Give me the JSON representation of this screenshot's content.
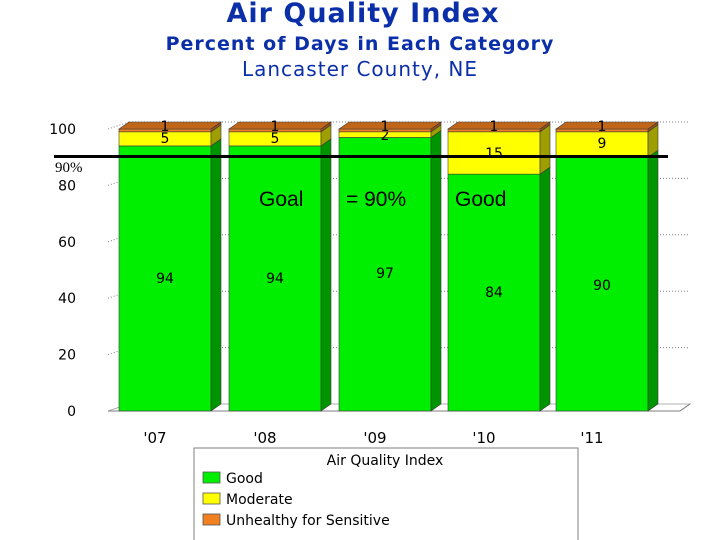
{
  "title": "Air Quality Index",
  "subtitle": "Percent of Days in Each Category",
  "location": "Lancaster County, NE",
  "goal": {
    "label": "90%",
    "value": 90,
    "note_parts": [
      "Goal",
      "= 90%",
      "Good"
    ]
  },
  "chart_data": {
    "type": "bar",
    "stacked": true,
    "categories": [
      "'07",
      "'08",
      "'09",
      "'10",
      "'11"
    ],
    "series": [
      {
        "name": "Good",
        "values": [
          94,
          94,
          97,
          84,
          90
        ],
        "color": "#00ee00"
      },
      {
        "name": "Moderate",
        "values": [
          5,
          5,
          2,
          15,
          9
        ],
        "color": "#ffff00"
      },
      {
        "name": "Unhealthy for Sensitive",
        "values": [
          1,
          1,
          1,
          1,
          1
        ],
        "color": "#f08020"
      }
    ],
    "ylim": [
      0,
      100
    ],
    "yticks": [
      0,
      20,
      40,
      60,
      80,
      100
    ],
    "legend_title": "Air Quality Index",
    "legend_position": "bottom",
    "grid": true
  }
}
